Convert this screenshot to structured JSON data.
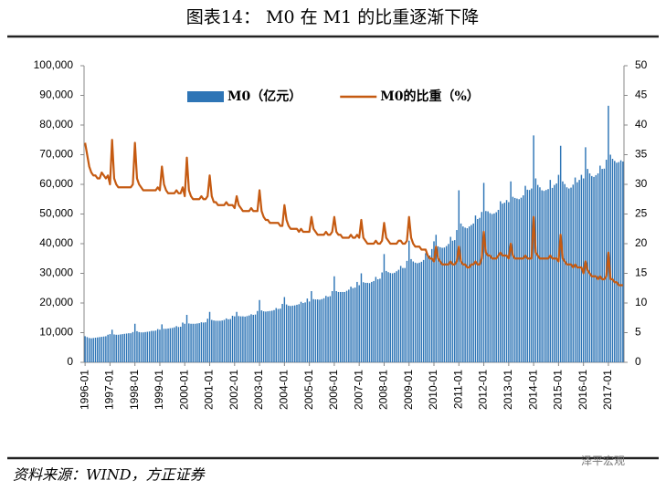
{
  "chart_data": {
    "type": "bar",
    "title": "图表14：        M0 在 M1 的比重逐渐下降",
    "source": "资料来源：WIND，方正证券",
    "watermark": "泽平宏观",
    "ylim": [
      0,
      100000
    ],
    "yticks": [
      0,
      {
        "value": 10000,
        "label": "10,000"
      },
      {
        "value": 20000,
        "label": "20,000"
      },
      {
        "value": 30000,
        "label": "30,000"
      },
      {
        "value": 40000,
        "label": "40,000"
      },
      {
        "value": 50000,
        "label": "50,000"
      },
      {
        "value": 60000,
        "label": "60,000"
      },
      {
        "value": 70000,
        "label": "70,000"
      },
      {
        "value": 80000,
        "label": "80,000"
      },
      {
        "value": 90000,
        "label": "90,000"
      },
      {
        "value": 100000,
        "label": "100,000"
      }
    ],
    "y2lim": [
      0,
      50
    ],
    "y2ticks": [
      0,
      5,
      10,
      15,
      20,
      25,
      30,
      35,
      40,
      45,
      50
    ],
    "grid": false,
    "legend": "top",
    "categories": [
      "1996-01",
      null,
      null,
      null,
      null,
      null,
      null,
      null,
      null,
      null,
      null,
      null,
      "1997-01",
      null,
      null,
      null,
      null,
      null,
      null,
      null,
      null,
      null,
      null,
      null,
      "1998-01",
      null,
      null,
      null,
      null,
      null,
      null,
      null,
      null,
      null,
      null,
      null,
      "1999-01",
      null,
      null,
      null,
      null,
      null,
      null,
      null,
      null,
      null,
      null,
      null,
      "2000-01",
      null,
      null,
      null,
      null,
      null,
      null,
      null,
      null,
      null,
      null,
      null,
      "2001-01",
      null,
      null,
      null,
      null,
      null,
      null,
      null,
      null,
      null,
      null,
      null,
      "2002-01",
      null,
      null,
      null,
      null,
      null,
      null,
      null,
      null,
      null,
      null,
      null,
      "2003-01",
      null,
      null,
      null,
      null,
      null,
      null,
      null,
      null,
      null,
      null,
      null,
      "2004-01",
      null,
      null,
      null,
      null,
      null,
      null,
      null,
      null,
      null,
      null,
      null,
      "2005-01",
      null,
      null,
      null,
      null,
      null,
      null,
      null,
      null,
      null,
      null,
      null,
      "2006-01",
      null,
      null,
      null,
      null,
      null,
      null,
      null,
      null,
      null,
      null,
      null,
      "2007-01",
      null,
      null,
      null,
      null,
      null,
      null,
      null,
      null,
      null,
      null,
      null,
      "2008-01",
      null,
      null,
      null,
      null,
      null,
      null,
      null,
      null,
      null,
      null,
      null,
      "2009-01",
      null,
      null,
      null,
      null,
      null,
      null,
      null,
      null,
      null,
      null,
      null,
      "2010-01",
      null,
      null,
      null,
      null,
      null,
      null,
      null,
      null,
      null,
      null,
      null,
      "2011-01",
      null,
      null,
      null,
      null,
      null,
      null,
      null,
      null,
      null,
      null,
      null,
      "2012-01",
      null,
      null,
      null,
      null,
      null,
      null,
      null,
      null,
      null,
      null,
      null,
      "2013-01",
      null,
      null,
      null,
      null,
      null,
      null,
      null,
      null,
      null,
      null,
      null,
      "2014-01",
      null,
      null,
      null,
      null,
      null,
      null,
      null,
      null,
      null,
      null,
      null,
      "2015-01",
      null,
      null,
      null,
      null,
      null,
      null,
      null,
      null,
      null,
      null,
      null,
      "2016-01",
      null,
      null,
      null,
      null,
      null,
      null,
      null,
      null,
      null,
      null,
      null,
      "2017-01",
      null,
      null,
      null,
      null,
      null,
      null,
      null
    ],
    "series": [
      {
        "name": "M0（亿元）",
        "type": "bar",
        "color": "#2e75b6",
        "values": [
          8800,
          8500,
          8200,
          8100,
          8200,
          8300,
          8400,
          8500,
          8600,
          8700,
          8800,
          9300,
          9500,
          11000,
          9400,
          9300,
          9300,
          9400,
          9500,
          9600,
          9700,
          9800,
          9800,
          10200,
          13000,
          10500,
          10200,
          10100,
          10100,
          10200,
          10300,
          10400,
          10600,
          10600,
          10700,
          11200,
          11000,
          12800,
          11300,
          11300,
          11400,
          11500,
          11600,
          11800,
          12200,
          11900,
          12000,
          13400,
          13000,
          16000,
          13100,
          13000,
          13000,
          13000,
          13100,
          13200,
          13500,
          13400,
          13500,
          14700,
          17000,
          14300,
          14100,
          14000,
          14000,
          14000,
          14100,
          14300,
          14800,
          14500,
          14600,
          15700,
          15500,
          17000,
          15600,
          15500,
          15500,
          15400,
          15600,
          15800,
          16200,
          16000,
          16100,
          17300,
          21000,
          17500,
          17200,
          17100,
          17200,
          17300,
          17400,
          17600,
          18300,
          18000,
          18100,
          19700,
          22000,
          19500,
          19100,
          19000,
          19100,
          19200,
          19400,
          19600,
          20400,
          20000,
          20200,
          21500,
          20500,
          24000,
          21300,
          21200,
          21200,
          21100,
          21300,
          21600,
          22400,
          22100,
          22300,
          24000,
          29000,
          24000,
          23700,
          23700,
          23700,
          23700,
          24100,
          24500,
          25500,
          25000,
          25200,
          27100,
          26000,
          30000,
          27000,
          26800,
          26800,
          26700,
          27100,
          27400,
          28800,
          28000,
          28200,
          30300,
          36500,
          30800,
          30400,
          30100,
          30000,
          30200,
          30700,
          31200,
          32500,
          31800,
          31800,
          34200,
          41000,
          34800,
          34000,
          33600,
          33400,
          33600,
          33900,
          34500,
          36800,
          35700,
          36000,
          38200,
          40800,
          43000,
          39100,
          38800,
          38600,
          38700,
          39200,
          39900,
          42300,
          41000,
          41200,
          44600,
          58000,
          46800,
          45800,
          45400,
          45200,
          45800,
          46300,
          46800,
          49500,
          48300,
          48700,
          50700,
          60500,
          51000,
          50900,
          50300,
          50000,
          50200,
          50600,
          51400,
          54300,
          53500,
          53800,
          54700,
          54000,
          61000,
          55800,
          55400,
          55200,
          55000,
          55500,
          56300,
          59500,
          58200,
          58100,
          58600,
          76500,
          62000,
          59800,
          59000,
          58000,
          57800,
          58100,
          58400,
          61500,
          58800,
          59800,
          60300,
          63200,
          73000,
          61000,
          60100,
          59000,
          58600,
          58900,
          59900,
          62300,
          60700,
          61500,
          63200,
          62000,
          72500,
          65200,
          63700,
          62800,
          62500,
          63100,
          63700,
          66300,
          65200,
          65300,
          68300,
          86500,
          70000,
          68600,
          67900,
          67300,
          67500,
          68100,
          67700
        ]
      },
      {
        "name": "M0的比重（%）",
        "type": "line",
        "axis": "y2",
        "color": "#c55a11",
        "values": [
          37,
          35,
          33,
          32,
          31.5,
          31.5,
          31,
          31,
          32,
          31.5,
          31,
          31.5,
          30,
          37.5,
          31,
          30,
          29.5,
          29.5,
          29.5,
          29.5,
          29.5,
          29.5,
          29.5,
          30,
          37,
          31,
          30,
          29.5,
          29,
          29,
          29,
          29,
          29,
          29,
          29,
          29.5,
          29,
          33,
          30,
          29,
          28.5,
          28.5,
          28.5,
          28.5,
          29,
          28.5,
          28.5,
          29.5,
          28,
          34.5,
          29,
          28,
          27.5,
          27.5,
          27.5,
          27.5,
          28,
          27.5,
          27.5,
          28,
          31.5,
          28,
          27,
          27,
          26.5,
          26.5,
          26.5,
          26.5,
          27,
          26.5,
          26.5,
          26.5,
          26,
          28,
          26.5,
          26,
          25.5,
          25.5,
          25.5,
          25.5,
          26,
          25.5,
          25.5,
          25.5,
          29,
          25.5,
          24.5,
          24,
          24,
          23.5,
          23.5,
          23.5,
          23.5,
          23.5,
          23,
          23,
          26.5,
          24,
          23,
          22.5,
          22.5,
          22.5,
          22.5,
          22,
          22.5,
          22,
          22,
          22,
          22,
          24.5,
          22.5,
          22,
          21.5,
          21.5,
          21.5,
          21.5,
          22,
          21.5,
          21.5,
          22,
          24.5,
          22,
          21.5,
          21.5,
          21,
          21,
          21,
          21,
          21.5,
          21,
          21,
          21.5,
          21,
          24,
          21,
          20.5,
          20,
          20,
          20,
          20,
          20.5,
          20,
          20,
          20.5,
          23.5,
          21,
          20.5,
          20,
          20,
          20,
          20,
          20.5,
          20.5,
          20,
          20,
          20.5,
          24.5,
          21,
          20,
          19.5,
          19.5,
          19.5,
          19,
          19,
          19,
          18,
          17.5,
          17.5,
          17,
          19.5,
          17.5,
          17,
          16.5,
          16.5,
          16.5,
          16.5,
          17,
          16.5,
          16.5,
          17,
          19.5,
          17,
          16.5,
          16.5,
          16,
          16,
          16.5,
          16.5,
          17,
          16.5,
          16.5,
          17.5,
          22,
          18.5,
          18,
          18,
          17.5,
          17.5,
          17.5,
          18,
          18.5,
          18,
          18,
          18,
          17.5,
          20,
          18,
          17.5,
          17.5,
          17.5,
          17.5,
          17.5,
          18,
          17.5,
          17.5,
          17.5,
          24.5,
          18.5,
          18,
          17.5,
          17.5,
          17.5,
          17.5,
          17.5,
          18,
          17.5,
          17.5,
          17.5,
          17,
          21.5,
          17.5,
          17,
          16.5,
          16.5,
          16.5,
          16,
          16.5,
          16,
          16,
          16,
          15,
          17,
          15.5,
          15,
          14.5,
          14.5,
          14.5,
          14,
          14.5,
          14,
          14,
          14.5,
          18.5,
          14,
          14,
          13.5,
          13.5,
          13,
          13,
          13
        ]
      }
    ]
  }
}
